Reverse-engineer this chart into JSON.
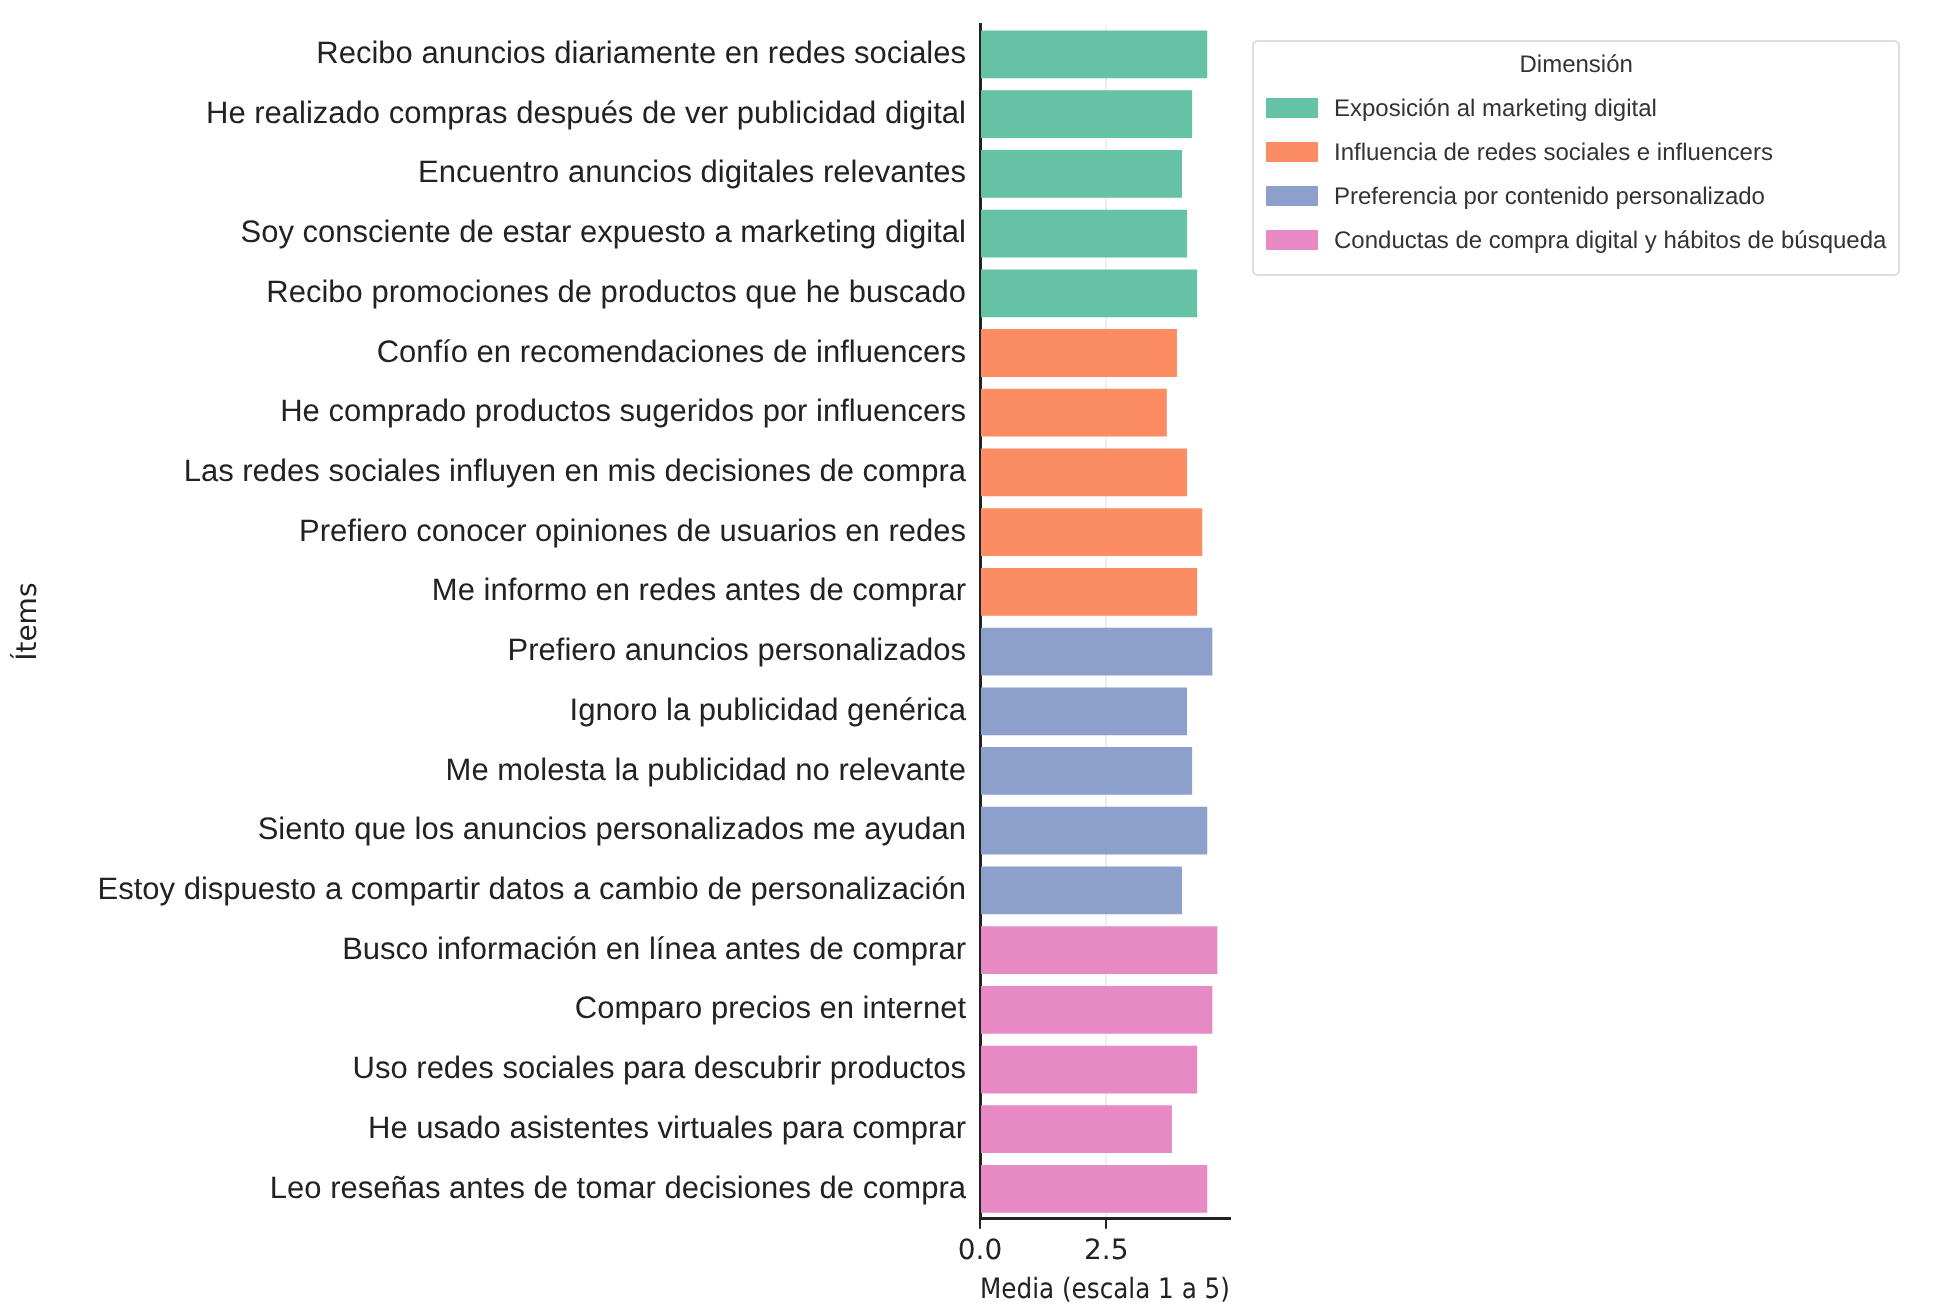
{
  "chart_data": {
    "type": "bar",
    "orientation": "horizontal",
    "xlabel": "Media (escala 1 a 5)",
    "ylabel": "Ítems",
    "legend_title": "Dimensión",
    "legend": "top right",
    "grid": "x",
    "categories": [
      "Recibo anuncios diariamente en redes sociales",
      "He realizado compras después de ver publicidad digital",
      "Encuentro anuncios digitales relevantes",
      "Soy consciente de estar expuesto a marketing digital",
      "Recibo promociones de productos que he buscado",
      "Confío en recomendaciones de influencers",
      "He comprado productos sugeridos por influencers",
      "Las redes sociales influyen en mis decisiones de compra",
      "Prefiero conocer opiniones de usuarios en redes",
      "Me informo en redes antes de comprar",
      "Prefiero anuncios personalizados",
      "Ignoro la publicidad genérica",
      "Me molesta la publicidad no relevante",
      "Siento que los anuncios personalizados me ayudan",
      "Estoy dispuesto a compartir datos a cambio de personalización",
      "Busco información en línea antes de comprar",
      "Comparo precios en internet",
      "Uso redes sociales para descubrir productos",
      "He usado asistentes virtuales para comprar",
      "Leo reseñas antes de tomar decisiones de compra"
    ],
    "xlim": [
      0,
      4.95
    ],
    "xticks": [
      {
        "value": 0,
        "label": "0.0"
      },
      {
        "value": 2.5,
        "label": "2.5"
      }
    ],
    "series": [
      {
        "name": "Exposición al marketing digital",
        "color": "#66c2a5",
        "values": [
          4.5,
          4.2,
          4.0,
          4.1,
          4.3,
          null,
          null,
          null,
          null,
          null,
          null,
          null,
          null,
          null,
          null,
          null,
          null,
          null,
          null,
          null
        ]
      },
      {
        "name": "Influencia de redes sociales e influencers",
        "color": "#fc8d62",
        "values": [
          null,
          null,
          null,
          null,
          null,
          3.9,
          3.7,
          4.1,
          4.4,
          4.3,
          null,
          null,
          null,
          null,
          null,
          null,
          null,
          null,
          null,
          null
        ]
      },
      {
        "name": "Preferencia por contenido personalizado",
        "color": "#8da0cb",
        "values": [
          null,
          null,
          null,
          null,
          null,
          null,
          null,
          null,
          null,
          null,
          4.6,
          4.1,
          4.2,
          4.5,
          4.0,
          null,
          null,
          null,
          null,
          null
        ]
      },
      {
        "name": "Conductas de compra digital y hábitos de búsqueda",
        "color": "#e78ac3",
        "values": [
          null,
          null,
          null,
          null,
          null,
          null,
          null,
          null,
          null,
          null,
          null,
          null,
          null,
          null,
          null,
          4.7,
          4.6,
          4.3,
          3.8,
          4.5
        ]
      }
    ]
  }
}
